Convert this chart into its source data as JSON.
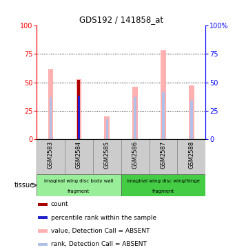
{
  "title": "GDS192 / 141858_at",
  "samples": [
    "GSM2583",
    "GSM2584",
    "GSM2585",
    "GSM2586",
    "GSM2587",
    "GSM2588"
  ],
  "value_absent": [
    62,
    53,
    20,
    46,
    78,
    47
  ],
  "rank_absent": [
    37,
    38,
    18,
    37,
    41,
    34
  ],
  "count": [
    0,
    52,
    0,
    0,
    0,
    0
  ],
  "percentile_rank": [
    0,
    38,
    0,
    0,
    0,
    0
  ],
  "ylim": [
    0,
    100
  ],
  "color_value_absent": "#ffb0b0",
  "color_rank_absent": "#b0c0e8",
  "color_count": "#aa0000",
  "color_percentile": "#2222cc",
  "tissue_groups": [
    {
      "label_top": "imaginal wing disc body wall",
      "label_bot": "fragment",
      "samples": [
        0,
        1,
        2
      ],
      "color": "#99ee99"
    },
    {
      "label_top": "imaginal wing disc wing/hinge",
      "label_bot": "fragment",
      "samples": [
        3,
        4,
        5
      ],
      "color": "#44cc44"
    }
  ],
  "legend_items": [
    {
      "color": "#aa0000",
      "label": "count"
    },
    {
      "color": "#2222cc",
      "label": "percentile rank within the sample"
    },
    {
      "color": "#ffb0b0",
      "label": "value, Detection Call = ABSENT"
    },
    {
      "color": "#b0c0e8",
      "label": "rank, Detection Call = ABSENT"
    }
  ],
  "value_bar_width": 0.18,
  "rank_bar_width": 0.08,
  "count_bar_width": 0.1,
  "pct_bar_width": 0.07
}
